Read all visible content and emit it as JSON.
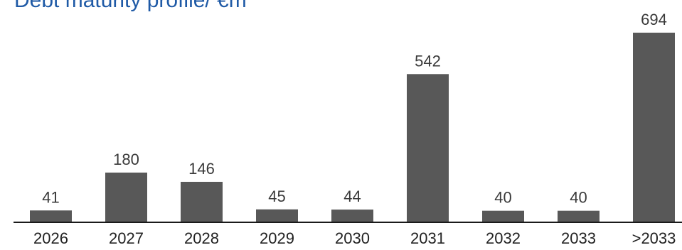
{
  "chart_data": {
    "type": "bar",
    "title": "Debt maturity profile/ €m",
    "categories": [
      "2026",
      "2027",
      "2028",
      "2029",
      "2030",
      "2031",
      "2032",
      "2033",
      ">2033"
    ],
    "values": [
      41,
      180,
      146,
      45,
      44,
      542,
      40,
      40,
      694
    ],
    "data_labels": [
      "41",
      "180",
      "146",
      "45",
      "44",
      "542",
      "40",
      "40",
      "694"
    ],
    "ylim": [
      0,
      700
    ],
    "grid": false,
    "colors": {
      "bar": "#585858",
      "axis": "#1a1a1a",
      "title": "#1f5aa6"
    }
  }
}
